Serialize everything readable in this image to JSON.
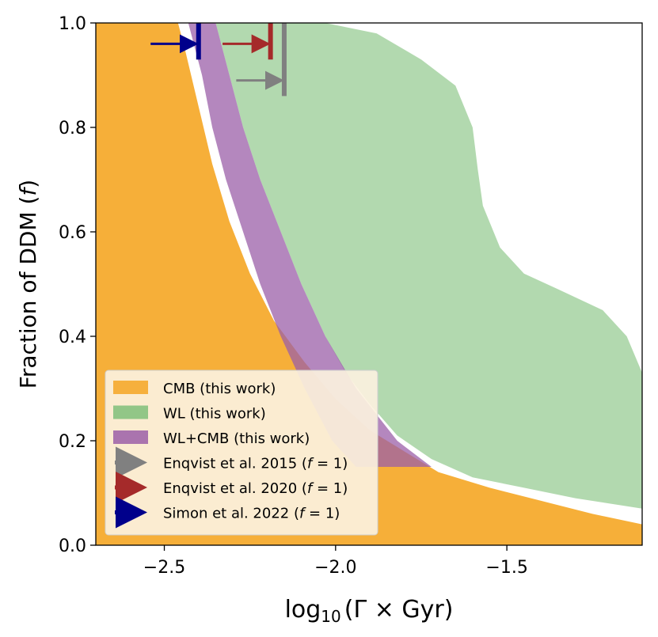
{
  "chart_data": {
    "type": "area",
    "xlabel_main": "log",
    "xlabel_sub": "10",
    "xlabel_rest": "(Γ × Gyr)",
    "ylabel": "Fraction of DDM (f)",
    "xlim": [
      -2.7,
      -1.105
    ],
    "ylim": [
      0.0,
      1.0
    ],
    "xticks": [
      -2.5,
      -2.0,
      -1.5
    ],
    "xtick_labels": [
      "−2.5",
      "−2.0",
      "−1.5"
    ],
    "yticks": [
      0.0,
      0.2,
      0.4,
      0.6,
      0.8,
      1.0
    ],
    "ytick_labels": [
      "0.0",
      "0.2",
      "0.4",
      "0.6",
      "0.8",
      "1.0"
    ],
    "grid": false,
    "legend_position": "lower-left",
    "series": [
      {
        "name": "CMB (this work)",
        "color": "#f5a623",
        "boundary_x_at_f": [
          [
            -2.46,
            1.0
          ],
          [
            -2.44,
            0.95
          ],
          [
            -2.4,
            0.84
          ],
          [
            -2.36,
            0.73
          ],
          [
            -2.31,
            0.62
          ],
          [
            -2.25,
            0.52
          ],
          [
            -2.18,
            0.43
          ],
          [
            -2.09,
            0.35
          ],
          [
            -2.0,
            0.28
          ],
          [
            -1.9,
            0.22
          ],
          [
            -1.8,
            0.18
          ],
          [
            -1.7,
            0.14
          ],
          [
            -1.55,
            0.11
          ],
          [
            -1.4,
            0.085
          ],
          [
            -1.25,
            0.06
          ],
          [
            -1.105,
            0.04
          ]
        ]
      },
      {
        "name": "WL (this work)",
        "color": "#7fc07a",
        "upper_boundary": [
          [
            -2.25,
            1.0
          ],
          [
            -2.15,
            1.0
          ],
          [
            -2.03,
            1.0
          ],
          [
            -1.88,
            0.98
          ],
          [
            -1.75,
            0.93
          ],
          [
            -1.65,
            0.88
          ],
          [
            -1.6,
            0.8
          ],
          [
            -1.585,
            0.72
          ],
          [
            -1.57,
            0.65
          ],
          [
            -1.52,
            0.57
          ],
          [
            -1.45,
            0.52
          ],
          [
            -1.35,
            0.49
          ],
          [
            -1.22,
            0.45
          ],
          [
            -1.15,
            0.4
          ],
          [
            -1.105,
            0.33
          ]
        ],
        "lower_boundary": [
          [
            -2.35,
            1.0
          ],
          [
            -2.31,
            0.9
          ],
          [
            -2.27,
            0.8
          ],
          [
            -2.22,
            0.7
          ],
          [
            -2.16,
            0.6
          ],
          [
            -2.1,
            0.5
          ],
          [
            -2.03,
            0.4
          ],
          [
            -1.97,
            0.33
          ],
          [
            -1.9,
            0.27
          ],
          [
            -1.82,
            0.21
          ],
          [
            -1.72,
            0.165
          ],
          [
            -1.6,
            0.13
          ],
          [
            -1.45,
            0.11
          ],
          [
            -1.3,
            0.09
          ],
          [
            -1.105,
            0.07
          ]
        ]
      },
      {
        "name": "WL+CMB (this work)",
        "color": "#9b5fa8",
        "region_between_x": [
          [
            1.0,
            -2.43,
            -2.35
          ],
          [
            0.9,
            -2.39,
            -2.31
          ],
          [
            0.8,
            -2.36,
            -2.27
          ],
          [
            0.7,
            -2.32,
            -2.22
          ],
          [
            0.6,
            -2.27,
            -2.16
          ],
          [
            0.5,
            -2.22,
            -2.1
          ],
          [
            0.4,
            -2.16,
            -2.03
          ],
          [
            0.3,
            -2.09,
            -1.94
          ],
          [
            0.2,
            -2.01,
            -1.82
          ],
          [
            0.15,
            -1.94,
            -1.72
          ]
        ]
      }
    ],
    "reference_limits": [
      {
        "name": "Enqvist et al. 2015 (f = 1)",
        "label_main": "Enqvist et al. 2015 (",
        "label_var": "f",
        "label_eq": " = 1)",
        "color": "#808080",
        "x": -2.15,
        "f_top": 1.0,
        "f_bottom": 0.86,
        "arrow_f": 0.89,
        "arrow_from_x": -2.29
      },
      {
        "name": "Enqvist et al. 2020 (f = 1)",
        "label_main": "Enqvist et al. 2020 (",
        "label_var": "f",
        "label_eq": " = 1)",
        "color": "#a52a2a",
        "x": -2.19,
        "f_top": 1.0,
        "f_bottom": 0.93,
        "arrow_f": 0.96,
        "arrow_from_x": -2.33
      },
      {
        "name": "Simon et al. 2022 (f = 1)",
        "label_main": "Simon et al. 2022 (",
        "label_var": "f",
        "label_eq": " = 1)",
        "color": "#00008b",
        "x": -2.4,
        "f_top": 1.0,
        "f_bottom": 0.93,
        "arrow_f": 0.96,
        "arrow_from_x": -2.54
      }
    ]
  }
}
